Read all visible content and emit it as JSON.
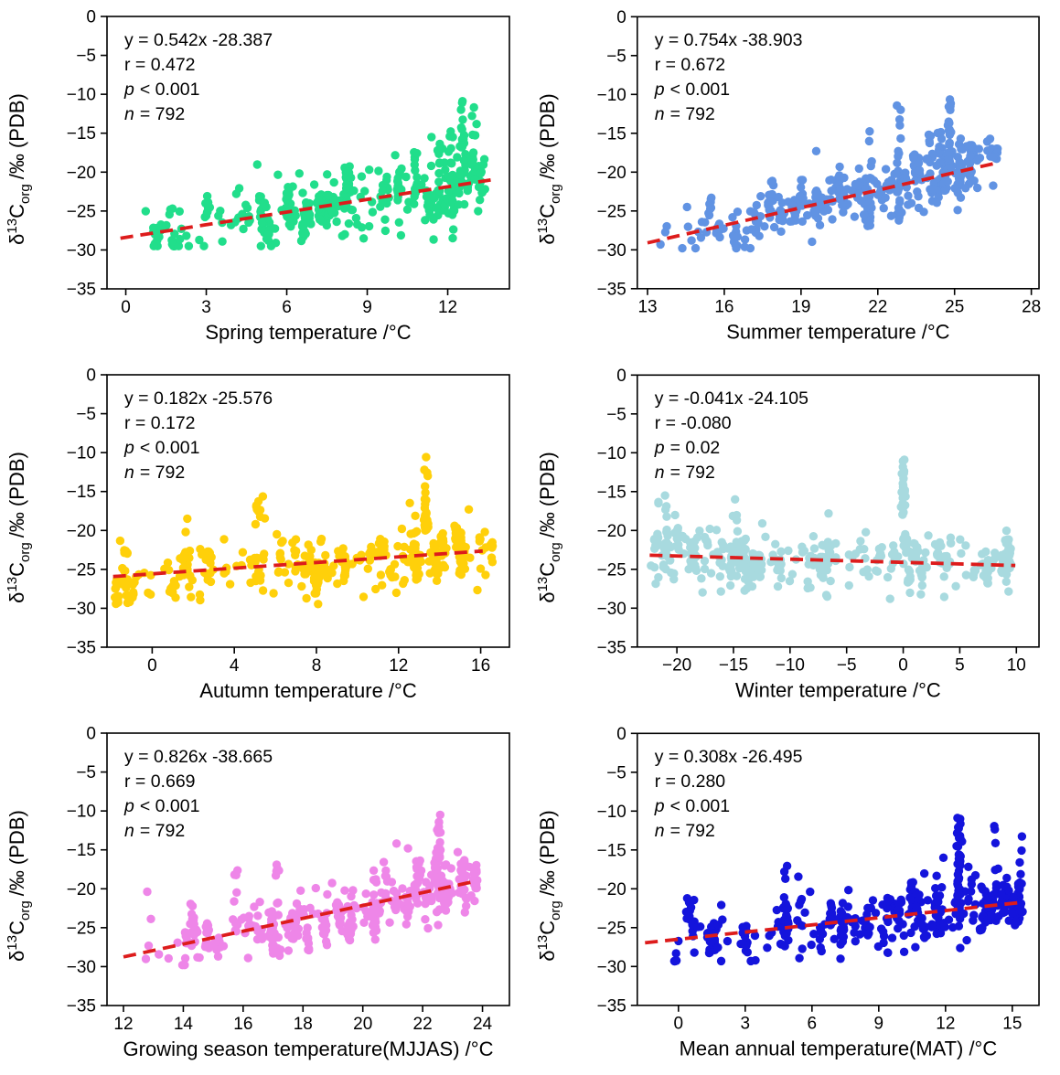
{
  "figure": {
    "background": "#ffffff",
    "axis_color": "#000000",
    "trend_color": "#dd1c1c",
    "ylabel": {
      "delta": "δ",
      "iso": "13",
      "c": "C",
      "sub": "org",
      "rest": "/‰ (PDB)"
    },
    "y_ticks": [
      0,
      -5,
      -10,
      -15,
      -20,
      -25,
      -30,
      -35
    ],
    "y_range": [
      0,
      -35
    ]
  },
  "chart_data": [
    {
      "type": "scatter",
      "id": "spring",
      "xlabel": "Spring temperature /°C",
      "marker_color": "#21de8b",
      "x_ticks": [
        0,
        3,
        6,
        9,
        12
      ],
      "x_range": [
        -0.7,
        14.3
      ],
      "regression": {
        "slope": 0.542,
        "intercept": -28.387,
        "x_start": -0.2,
        "x_end": 13.6
      },
      "stats": {
        "slope": 0.542,
        "intercept": -28.387,
        "r": 0.472,
        "p": "< 0.001",
        "n": 792
      },
      "annotation": {
        "equation": "y = 0.542x -28.387",
        "r_line": "r = 0.472",
        "p_var": "p",
        "p_rest": "< 0.001",
        "n_var": "n",
        "n_rest": "= 792"
      },
      "scatter": {
        "x_min": 0.4,
        "x_max": 13.4,
        "x_skew": 0.62,
        "sites": 36,
        "site_max": 12,
        "site_sd": 1.5,
        "point_sd": 0.95,
        "singles": 150,
        "noise_sd": 2.1,
        "y_clamp": [
          -29.5,
          -10.3
        ],
        "spike": {
          "x": 12.55,
          "y_top": -10.4,
          "y_base": -17.0,
          "n": 20
        }
      }
    },
    {
      "type": "scatter",
      "id": "summer",
      "xlabel": "Summer temperature /°C",
      "marker_color": "#6193e3",
      "x_ticks": [
        13,
        16,
        19,
        22,
        25,
        28
      ],
      "x_range": [
        12.6,
        28.3
      ],
      "regression": {
        "slope": 0.754,
        "intercept": -38.903,
        "x_start": 13.0,
        "x_end": 26.6
      },
      "stats": {
        "slope": 0.754,
        "intercept": -38.903,
        "r": 0.672,
        "p": "< 0.001",
        "n": 792
      },
      "annotation": {
        "equation": "y = 0.754x -38.903",
        "r_line": "r = 0.672",
        "p_var": "p",
        "p_rest": "< 0.001",
        "n_var": "n",
        "n_rest": "= 792"
      },
      "scatter": {
        "x_min": 13.2,
        "x_max": 26.7,
        "x_skew": 0.64,
        "sites": 36,
        "site_max": 12,
        "site_sd": 1.5,
        "point_sd": 0.95,
        "singles": 150,
        "noise_sd": 2.1,
        "y_clamp": [
          -29.8,
          -10.3
        ],
        "spike": {
          "x": 24.8,
          "y_top": -10.4,
          "y_base": -19.5,
          "n": 30
        }
      }
    },
    {
      "type": "scatter",
      "id": "autumn",
      "xlabel": "Autumn temperature /°C",
      "marker_color": "#ffd00a",
      "x_ticks": [
        0,
        4,
        8,
        12,
        16
      ],
      "x_range": [
        -2.2,
        17.4
      ],
      "regression": {
        "slope": 0.182,
        "intercept": -25.576,
        "x_start": -1.9,
        "x_end": 16.1
      },
      "stats": {
        "slope": 0.182,
        "intercept": -25.576,
        "r": 0.172,
        "p": "< 0.001",
        "n": 792
      },
      "annotation": {
        "equation": "y = 0.182x -25.576",
        "r_line": "r = 0.172",
        "p_var": "p",
        "p_rest": "< 0.001",
        "n_var": "n",
        "n_rest": "= 792"
      },
      "scatter": {
        "x_min": -1.8,
        "x_max": 16.6,
        "x_skew": 0.75,
        "sites": 36,
        "site_max": 12,
        "site_sd": 1.5,
        "point_sd": 0.95,
        "singles": 150,
        "noise_sd": 2.1,
        "y_clamp": [
          -29.5,
          -10.3
        ],
        "spike": {
          "x": 13.35,
          "y_top": -10.4,
          "y_base": -20.0,
          "n": 26
        }
      }
    },
    {
      "type": "scatter",
      "id": "winter",
      "xlabel": "Winter temperature /°C",
      "marker_color": "#a8dadf",
      "x_ticks": [
        -20,
        -15,
        -10,
        -5,
        0,
        5,
        10
      ],
      "x_range": [
        -23.5,
        12
      ],
      "regression": {
        "slope": -0.041,
        "intercept": -24.105,
        "x_start": -22.4,
        "x_end": 9.9
      },
      "stats": {
        "slope": -0.041,
        "intercept": -24.105,
        "r": -0.08,
        "p": "= 0.02",
        "n": 792
      },
      "annotation": {
        "equation": "y = -0.041x -24.105",
        "r_line": "r = -0.080",
        "p_var": "p",
        "p_rest": "= 0.02",
        "n_var": "n",
        "n_rest": "= 792"
      },
      "scatter": {
        "x_min": -22.3,
        "x_max": 9.6,
        "x_skew": 1.1,
        "sites": 36,
        "site_max": 12,
        "site_sd": 1.5,
        "point_sd": 0.95,
        "singles": 150,
        "noise_sd": 2.0,
        "y_clamp": [
          -28.8,
          -10.3
        ],
        "spike": {
          "x": 0.0,
          "y_top": -10.4,
          "y_base": -18.0,
          "n": 26
        }
      }
    },
    {
      "type": "scatter",
      "id": "growing-season",
      "xlabel": "Growing season temperature(MJJAS) /°C",
      "marker_color": "#ee86e8",
      "x_ticks": [
        12,
        14,
        16,
        18,
        20,
        22,
        24
      ],
      "x_range": [
        11.45,
        24.9
      ],
      "regression": {
        "slope": 0.826,
        "intercept": -38.665,
        "x_start": 12.0,
        "x_end": 23.8
      },
      "stats": {
        "slope": 0.826,
        "intercept": -38.665,
        "r": 0.669,
        "p": "< 0.001",
        "n": 792
      },
      "annotation": {
        "equation": "y = 0.826x -38.665",
        "r_line": "r = 0.669",
        "p_var": "p",
        "p_rest": "< 0.001",
        "n_var": "n",
        "n_rest": "= 792"
      },
      "scatter": {
        "x_min": 12.7,
        "x_max": 23.8,
        "x_skew": 0.66,
        "sites": 36,
        "site_max": 12,
        "site_sd": 1.5,
        "point_sd": 0.95,
        "singles": 150,
        "noise_sd": 2.1,
        "y_clamp": [
          -29.8,
          -10.3
        ],
        "spike": {
          "x": 22.55,
          "y_top": -10.4,
          "y_base": -16.0,
          "n": 24
        }
      }
    },
    {
      "type": "scatter",
      "id": "mat",
      "xlabel": "Mean annual temperature(MAT) /°C",
      "marker_color": "#1414dc",
      "x_ticks": [
        0,
        3,
        6,
        9,
        12,
        15
      ],
      "x_range": [
        -1.85,
        16.2
      ],
      "regression": {
        "slope": 0.308,
        "intercept": -26.495,
        "x_start": -1.5,
        "x_end": 15.3
      },
      "stats": {
        "slope": 0.308,
        "intercept": -26.495,
        "r": 0.28,
        "p": "< 0.001",
        "n": 792
      },
      "annotation": {
        "equation": "y = 0.308x -26.495",
        "r_line": "r = 0.280",
        "p_var": "p",
        "p_rest": "< 0.001",
        "n_var": "n",
        "n_rest": "= 792"
      },
      "scatter": {
        "x_min": -1.3,
        "x_max": 15.4,
        "x_skew": 0.6,
        "sites": 36,
        "site_max": 12,
        "site_sd": 1.5,
        "point_sd": 0.95,
        "singles": 150,
        "noise_sd": 2.1,
        "y_clamp": [
          -29.3,
          -10.3
        ],
        "spike": {
          "x": 12.6,
          "y_top": -10.4,
          "y_base": -21.0,
          "n": 36
        }
      }
    }
  ]
}
